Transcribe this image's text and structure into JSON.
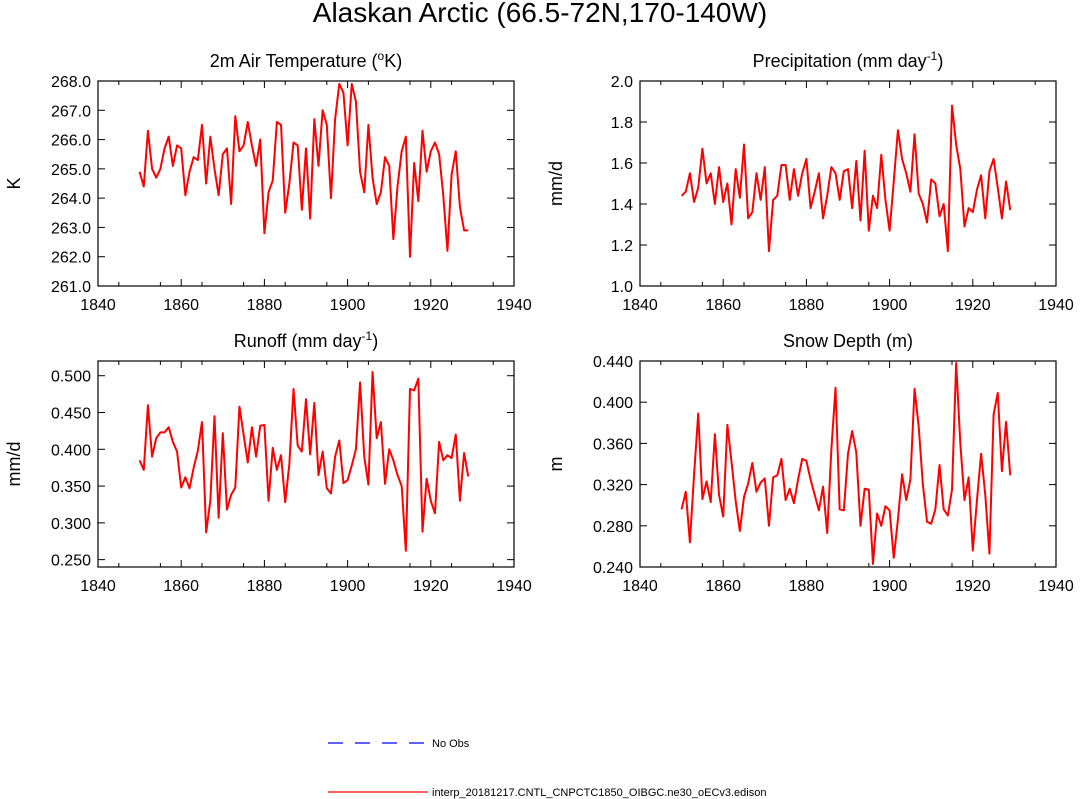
{
  "figure": {
    "title": "Alaskan Arctic (66.5-72N,170-140W)"
  },
  "chart_data": [
    {
      "type": "line",
      "title_pre": "2m Air Temperature (",
      "title_sup": "o",
      "title_post": "K)",
      "ylabel": "K",
      "xlabel": "",
      "xlim": [
        1840,
        1940
      ],
      "xticks": [
        "1840",
        "1860",
        "1880",
        "1900",
        "1920",
        "1940"
      ],
      "ylim": [
        261.0,
        268.0
      ],
      "yticks": [
        "261.0",
        "262.0",
        "263.0",
        "264.0",
        "265.0",
        "266.0",
        "267.0",
        "268.0"
      ],
      "series": [
        {
          "name": "interp_20181217.CNTL_CNPCTC1850_OIBGC.ne30_oECv3.edison",
          "color": "#ff0000",
          "x": [
            1850,
            1851,
            1852,
            1853,
            1854,
            1855,
            1856,
            1857,
            1858,
            1859,
            1860,
            1861,
            1862,
            1863,
            1864,
            1865,
            1866,
            1867,
            1868,
            1869,
            1870,
            1871,
            1872,
            1873,
            1874,
            1875,
            1876,
            1877,
            1878,
            1879,
            1880,
            1881,
            1882,
            1883,
            1884,
            1885,
            1886,
            1887,
            1888,
            1889,
            1890,
            1891,
            1892,
            1893,
            1894,
            1895,
            1896,
            1897,
            1898,
            1899,
            1900,
            1901,
            1902,
            1903,
            1904,
            1905,
            1906,
            1907,
            1908,
            1909,
            1910,
            1911,
            1912,
            1913,
            1914,
            1915,
            1916,
            1917,
            1918,
            1919,
            1920,
            1921,
            1922,
            1923,
            1924,
            1925,
            1926,
            1927,
            1928,
            1929
          ],
          "values": [
            264.9,
            264.4,
            266.3,
            265.0,
            264.7,
            265.0,
            265.7,
            266.1,
            265.1,
            265.8,
            265.7,
            264.1,
            264.9,
            265.4,
            265.3,
            266.5,
            264.5,
            266.1,
            265.0,
            264.1,
            265.5,
            265.7,
            263.8,
            266.8,
            265.6,
            265.8,
            266.6,
            265.8,
            265.1,
            266.0,
            262.8,
            264.2,
            264.6,
            266.6,
            266.5,
            263.5,
            264.5,
            265.9,
            265.8,
            263.6,
            265.7,
            263.3,
            266.7,
            265.1,
            267.0,
            266.5,
            264.0,
            266.7,
            267.9,
            267.6,
            265.8,
            267.9,
            267.3,
            264.9,
            264.2,
            266.5,
            264.7,
            263.8,
            264.2,
            265.4,
            265.1,
            262.6,
            264.4,
            265.6,
            266.1,
            262.0,
            265.2,
            263.9,
            266.3,
            264.9,
            265.6,
            265.9,
            265.5,
            264.1,
            262.2,
            264.8,
            265.6,
            263.7,
            262.9,
            262.9
          ]
        }
      ]
    },
    {
      "type": "line",
      "title_pre": "Precipitation (mm day",
      "title_sup": "-1",
      "title_post": ")",
      "ylabel": "mm/d",
      "xlabel": "",
      "xlim": [
        1840,
        1940
      ],
      "xticks": [
        "1840",
        "1860",
        "1880",
        "1900",
        "1920",
        "1940"
      ],
      "ylim": [
        1.0,
        2.0
      ],
      "yticks": [
        "1.0",
        "1.2",
        "1.4",
        "1.6",
        "1.8",
        "2.0"
      ],
      "series": [
        {
          "name": "interp_20181217.CNTL_CNPCTC1850_OIBGC.ne30_oECv3.edison",
          "color": "#ff0000",
          "x": [
            1850,
            1851,
            1852,
            1853,
            1854,
            1855,
            1856,
            1857,
            1858,
            1859,
            1860,
            1861,
            1862,
            1863,
            1864,
            1865,
            1866,
            1867,
            1868,
            1869,
            1870,
            1871,
            1872,
            1873,
            1874,
            1875,
            1876,
            1877,
            1878,
            1879,
            1880,
            1881,
            1882,
            1883,
            1884,
            1885,
            1886,
            1887,
            1888,
            1889,
            1890,
            1891,
            1892,
            1893,
            1894,
            1895,
            1896,
            1897,
            1898,
            1899,
            1900,
            1901,
            1902,
            1903,
            1904,
            1905,
            1906,
            1907,
            1908,
            1909,
            1910,
            1911,
            1912,
            1913,
            1914,
            1915,
            1916,
            1917,
            1918,
            1919,
            1920,
            1921,
            1922,
            1923,
            1924,
            1925,
            1926,
            1927,
            1928,
            1929
          ],
          "values": [
            1.44,
            1.46,
            1.55,
            1.41,
            1.48,
            1.67,
            1.5,
            1.55,
            1.4,
            1.58,
            1.41,
            1.5,
            1.3,
            1.57,
            1.43,
            1.69,
            1.33,
            1.36,
            1.55,
            1.42,
            1.58,
            1.17,
            1.42,
            1.44,
            1.59,
            1.59,
            1.42,
            1.57,
            1.44,
            1.55,
            1.62,
            1.38,
            1.46,
            1.55,
            1.33,
            1.44,
            1.58,
            1.55,
            1.42,
            1.56,
            1.57,
            1.38,
            1.61,
            1.32,
            1.66,
            1.27,
            1.44,
            1.38,
            1.64,
            1.42,
            1.27,
            1.51,
            1.76,
            1.62,
            1.55,
            1.46,
            1.74,
            1.45,
            1.4,
            1.31,
            1.52,
            1.5,
            1.34,
            1.4,
            1.17,
            1.88,
            1.69,
            1.57,
            1.29,
            1.38,
            1.36,
            1.47,
            1.54,
            1.33,
            1.56,
            1.62,
            1.48,
            1.33,
            1.51,
            1.37
          ]
        }
      ]
    },
    {
      "type": "line",
      "title_pre": "Runoff (mm day",
      "title_sup": "-1",
      "title_post": ")",
      "ylabel": "mm/d",
      "xlabel": "",
      "xlim": [
        1840,
        1940
      ],
      "xticks": [
        "1840",
        "1860",
        "1880",
        "1900",
        "1920",
        "1940"
      ],
      "ylim": [
        0.24,
        0.52
      ],
      "yticks": [
        "0.250",
        "0.300",
        "0.350",
        "0.400",
        "0.450",
        "0.500"
      ],
      "ytick_values": [
        0.25,
        0.3,
        0.35,
        0.4,
        0.45,
        0.5
      ],
      "series": [
        {
          "name": "interp_20181217.CNTL_CNPCTC1850_OIBGC.ne30_oECv3.edison",
          "color": "#ff0000",
          "x": [
            1850,
            1851,
            1852,
            1853,
            1854,
            1855,
            1856,
            1857,
            1858,
            1859,
            1860,
            1861,
            1862,
            1863,
            1864,
            1865,
            1866,
            1867,
            1868,
            1869,
            1870,
            1871,
            1872,
            1873,
            1874,
            1875,
            1876,
            1877,
            1878,
            1879,
            1880,
            1881,
            1882,
            1883,
            1884,
            1885,
            1886,
            1887,
            1888,
            1889,
            1890,
            1891,
            1892,
            1893,
            1894,
            1895,
            1896,
            1897,
            1898,
            1899,
            1900,
            1901,
            1902,
            1903,
            1904,
            1905,
            1906,
            1907,
            1908,
            1909,
            1910,
            1911,
            1912,
            1913,
            1914,
            1915,
            1916,
            1917,
            1918,
            1919,
            1920,
            1921,
            1922,
            1923,
            1924,
            1925,
            1926,
            1927,
            1928,
            1929
          ],
          "values": [
            0.385,
            0.372,
            0.46,
            0.39,
            0.415,
            0.423,
            0.423,
            0.43,
            0.41,
            0.397,
            0.348,
            0.362,
            0.347,
            0.375,
            0.398,
            0.437,
            0.287,
            0.33,
            0.445,
            0.307,
            0.422,
            0.318,
            0.338,
            0.348,
            0.458,
            0.42,
            0.382,
            0.43,
            0.39,
            0.432,
            0.433,
            0.33,
            0.402,
            0.372,
            0.392,
            0.328,
            0.38,
            0.482,
            0.405,
            0.397,
            0.468,
            0.393,
            0.463,
            0.365,
            0.397,
            0.347,
            0.34,
            0.39,
            0.412,
            0.354,
            0.358,
            0.378,
            0.4,
            0.491,
            0.39,
            0.352,
            0.505,
            0.415,
            0.437,
            0.353,
            0.4,
            0.385,
            0.365,
            0.35,
            0.262,
            0.482,
            0.48,
            0.496,
            0.288,
            0.36,
            0.33,
            0.313,
            0.41,
            0.385,
            0.392,
            0.388,
            0.42,
            0.33,
            0.395,
            0.363
          ]
        }
      ]
    },
    {
      "type": "line",
      "title_pre": "Snow Depth (m)",
      "title_sup": "",
      "title_post": "",
      "ylabel": "m",
      "xlabel": "",
      "xlim": [
        1840,
        1940
      ],
      "xticks": [
        "1840",
        "1860",
        "1880",
        "1900",
        "1920",
        "1940"
      ],
      "ylim": [
        0.24,
        0.44
      ],
      "yticks": [
        "0.240",
        "0.280",
        "0.320",
        "0.360",
        "0.400",
        "0.440"
      ],
      "series": [
        {
          "name": "interp_20181217.CNTL_CNPCTC1850_OIBGC.ne30_oECv3.edison",
          "color": "#ff0000",
          "x": [
            1850,
            1851,
            1852,
            1853,
            1854,
            1855,
            1856,
            1857,
            1858,
            1859,
            1860,
            1861,
            1862,
            1863,
            1864,
            1865,
            1866,
            1867,
            1868,
            1869,
            1870,
            1871,
            1872,
            1873,
            1874,
            1875,
            1876,
            1877,
            1878,
            1879,
            1880,
            1881,
            1882,
            1883,
            1884,
            1885,
            1886,
            1887,
            1888,
            1889,
            1890,
            1891,
            1892,
            1893,
            1894,
            1895,
            1896,
            1897,
            1898,
            1899,
            1900,
            1901,
            1902,
            1903,
            1904,
            1905,
            1906,
            1907,
            1908,
            1909,
            1910,
            1911,
            1912,
            1913,
            1914,
            1915,
            1916,
            1917,
            1918,
            1919,
            1920,
            1921,
            1922,
            1923,
            1924,
            1925,
            1926,
            1927,
            1928,
            1929
          ],
          "values": [
            0.296,
            0.313,
            0.264,
            0.33,
            0.389,
            0.306,
            0.323,
            0.303,
            0.369,
            0.31,
            0.289,
            0.378,
            0.342,
            0.304,
            0.275,
            0.308,
            0.321,
            0.341,
            0.313,
            0.322,
            0.326,
            0.28,
            0.327,
            0.329,
            0.345,
            0.305,
            0.316,
            0.302,
            0.325,
            0.345,
            0.343,
            0.325,
            0.31,
            0.295,
            0.318,
            0.273,
            0.354,
            0.414,
            0.296,
            0.295,
            0.35,
            0.372,
            0.351,
            0.28,
            0.316,
            0.315,
            0.243,
            0.292,
            0.28,
            0.299,
            0.295,
            0.249,
            0.286,
            0.33,
            0.305,
            0.325,
            0.413,
            0.376,
            0.32,
            0.284,
            0.282,
            0.296,
            0.339,
            0.296,
            0.29,
            0.315,
            0.438,
            0.36,
            0.305,
            0.327,
            0.256,
            0.305,
            0.35,
            0.31,
            0.253,
            0.388,
            0.409,
            0.333,
            0.381,
            0.329
          ]
        }
      ]
    }
  ],
  "legend": {
    "items": [
      {
        "label": "No Obs",
        "color": "#0000ff",
        "style": "dashed"
      },
      {
        "label": "interp_20181217.CNTL_CNPCTC1850_OIBGC.ne30_oECv3.edison",
        "color": "#ff0000",
        "style": "solid"
      }
    ]
  }
}
